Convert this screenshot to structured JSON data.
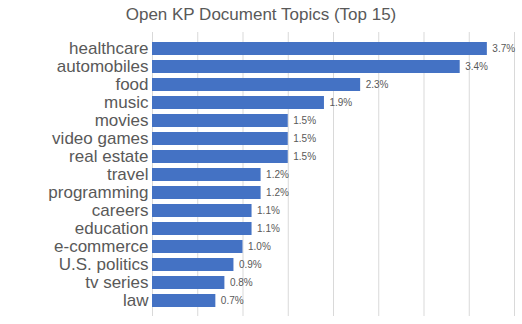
{
  "chart_data": {
    "type": "bar",
    "title": "Open KP Document Topics (Top 15)",
    "orientation": "horizontal",
    "categories": [
      "healthcare",
      "automobiles",
      "food",
      "music",
      "movies",
      "video games",
      "real estate",
      "travel",
      "programming",
      "careers",
      "education",
      "e-commerce",
      "U.S. politics",
      "tv series",
      "law"
    ],
    "values": [
      3.7,
      3.4,
      2.3,
      1.9,
      1.5,
      1.5,
      1.5,
      1.2,
      1.2,
      1.1,
      1.1,
      1.0,
      0.9,
      0.8,
      0.7
    ],
    "value_labels": [
      "3.7%",
      "3.4%",
      "2.3%",
      "1.9%",
      "1.5%",
      "1.5%",
      "1.5%",
      "1.2%",
      "1.2%",
      "1.1%",
      "1.1%",
      "1.0%",
      "0.9%",
      "0.8%",
      "0.7%"
    ],
    "color": "#4472c4",
    "xlim": [
      0,
      4
    ],
    "xticks": [
      0,
      0.5,
      1,
      1.5,
      2,
      2.5,
      3,
      3.5,
      4
    ],
    "grid": true,
    "data_labels": true,
    "tick_labels": "y"
  }
}
